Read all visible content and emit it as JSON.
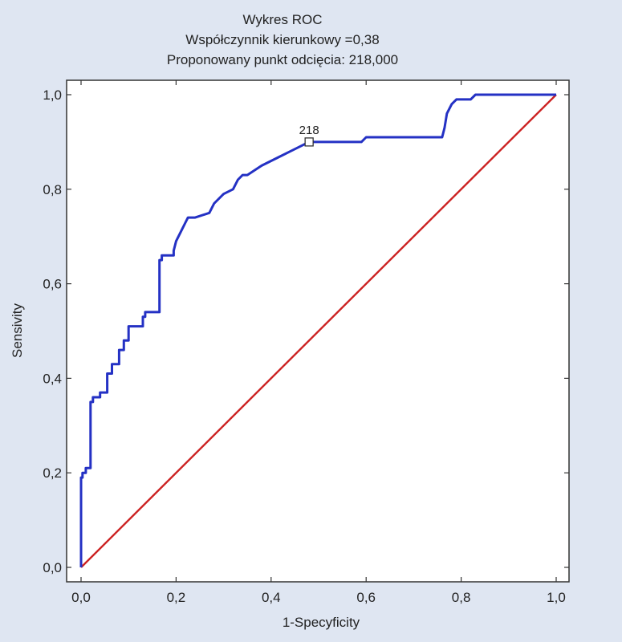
{
  "chart_data": {
    "type": "line",
    "title": "Wykres ROC",
    "subtitle_lines": [
      "Współczynnik kierunkowy =0,38",
      "Proponowany punkt odcięcia: 218,000"
    ],
    "xlabel": "1-Specyficity",
    "ylabel": "Sensivity",
    "xlim": [
      0,
      1
    ],
    "ylim": [
      0,
      1
    ],
    "x_ticks": [
      "0,0",
      "0,2",
      "0,4",
      "0,6",
      "0,8",
      "1,0"
    ],
    "y_ticks": [
      "0,0",
      "0,2",
      "0,4",
      "0,6",
      "0,8",
      "1,0"
    ],
    "grid": false,
    "series": [
      {
        "color": "#2431c4",
        "x": [
          0.0,
          0.0,
          0.003,
          0.003,
          0.01,
          0.01,
          0.02,
          0.02,
          0.025,
          0.025,
          0.04,
          0.04,
          0.055,
          0.055,
          0.065,
          0.065,
          0.08,
          0.08,
          0.09,
          0.09,
          0.1,
          0.1,
          0.11,
          0.11,
          0.13,
          0.13,
          0.135,
          0.135,
          0.165,
          0.165,
          0.17,
          0.17,
          0.195,
          0.195,
          0.2,
          0.21,
          0.22,
          0.225,
          0.24,
          0.27,
          0.28,
          0.3,
          0.32,
          0.33,
          0.34,
          0.35,
          0.38,
          0.4,
          0.42,
          0.44,
          0.46,
          0.48,
          0.59,
          0.6,
          0.76,
          0.765,
          0.77,
          0.78,
          0.79,
          0.8,
          0.82,
          0.83,
          0.85,
          0.9,
          1.0
        ],
        "y": [
          0.0,
          0.19,
          0.19,
          0.2,
          0.2,
          0.21,
          0.21,
          0.35,
          0.35,
          0.36,
          0.36,
          0.37,
          0.37,
          0.41,
          0.41,
          0.43,
          0.43,
          0.46,
          0.46,
          0.48,
          0.48,
          0.51,
          0.51,
          0.51,
          0.51,
          0.53,
          0.53,
          0.54,
          0.54,
          0.65,
          0.65,
          0.66,
          0.66,
          0.67,
          0.69,
          0.71,
          0.73,
          0.74,
          0.74,
          0.75,
          0.77,
          0.79,
          0.8,
          0.82,
          0.83,
          0.83,
          0.85,
          0.86,
          0.87,
          0.88,
          0.89,
          0.9,
          0.9,
          0.91,
          0.91,
          0.93,
          0.96,
          0.98,
          0.99,
          0.99,
          0.99,
          1.0,
          1.0,
          1.0,
          1.0
        ]
      },
      {
        "color": "#cc2222",
        "x": [
          0,
          1
        ],
        "y": [
          0,
          1
        ]
      }
    ],
    "annotations": [
      {
        "text": "218",
        "x": 0.48,
        "y": 0.9,
        "marker": "open-square"
      }
    ]
  }
}
